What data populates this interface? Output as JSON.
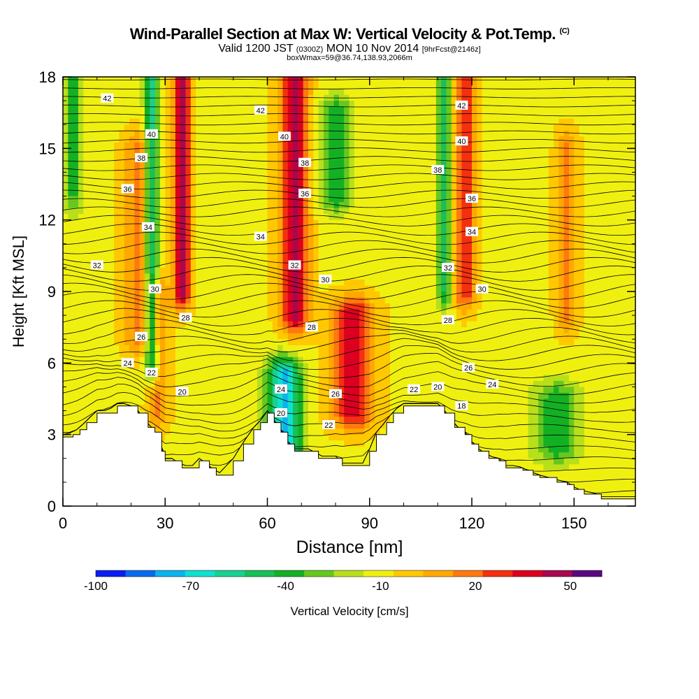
{
  "chart_data": {
    "type": "heatmap",
    "title": "Wind-Parallel Section at Max W: Vertical Velocity & Pot.Temp.",
    "title_mark": "(C)",
    "subtitle_main": "Valid 1200 JST",
    "subtitle_utc": "(0300Z)",
    "subtitle_date": "MON 10 Nov 2014",
    "subtitle_fcst": "[9hrFcst@2146z]",
    "subtitle2": "boxWmax=59@36.74,138.93,2066m",
    "xlabel": "Distance [nm]",
    "ylabel": "Height [Kft MSL]",
    "xlim": [
      0,
      168
    ],
    "ylim": [
      0,
      18
    ],
    "xticks": [
      "0",
      "30",
      "60",
      "90",
      "120",
      "150"
    ],
    "xtick_values": [
      0,
      30,
      60,
      90,
      120,
      150
    ],
    "yticks": [
      "0",
      "3",
      "6",
      "9",
      "12",
      "15",
      "18"
    ],
    "ytick_values": [
      0,
      3,
      6,
      9,
      12,
      15,
      18
    ],
    "colorbar": {
      "label": "Vertical Velocity [cm/s]",
      "tick_labels": [
        "-100",
        "-70",
        "-40",
        "-10",
        "20",
        "50"
      ],
      "tick_values": [
        -100,
        -70,
        -40,
        -10,
        20,
        50
      ],
      "bins": [
        -100,
        -90,
        -80,
        -70,
        -60,
        -50,
        -40,
        -30,
        -20,
        -10,
        0,
        10,
        20,
        30,
        40,
        50,
        60
      ],
      "colors": [
        "#0a1ef0",
        "#0a6aee",
        "#0ab4ee",
        "#10e0d0",
        "#18d090",
        "#18c058",
        "#14b024",
        "#66c81e",
        "#b8e01a",
        "#f0f010",
        "#ffc800",
        "#ffa800",
        "#ff7810",
        "#f43010",
        "#dc0020",
        "#a80850",
        "#5a0a80"
      ]
    },
    "terrain": {
      "x": [
        0,
        3,
        5,
        7,
        10,
        13,
        16,
        19,
        22,
        25,
        27,
        29,
        30,
        32,
        35,
        38,
        40,
        43,
        45,
        46,
        50,
        53,
        56,
        58,
        60,
        62,
        64,
        66,
        68,
        70,
        73,
        75,
        78,
        80,
        82,
        85,
        88,
        90,
        92,
        95,
        97,
        100,
        102,
        105,
        108,
        110,
        112,
        115,
        118,
        120,
        122,
        125,
        128,
        130,
        133,
        135,
        138,
        140,
        145,
        148,
        150,
        153,
        155,
        158,
        162,
        168
      ],
      "z": [
        2.9,
        3.0,
        3.2,
        3.5,
        3.9,
        3.9,
        4.2,
        4.2,
        3.9,
        3.3,
        3.1,
        2.3,
        1.9,
        1.9,
        1.6,
        1.6,
        1.9,
        1.6,
        1.3,
        1.3,
        1.9,
        2.6,
        3.2,
        3.5,
        3.9,
        3.5,
        3.1,
        2.6,
        2.3,
        2.3,
        2.3,
        2.0,
        2.0,
        2.0,
        1.7,
        1.7,
        1.7,
        2.3,
        3.0,
        3.5,
        3.9,
        4.2,
        4.2,
        4.2,
        4.2,
        4.2,
        3.9,
        3.3,
        3.0,
        2.6,
        2.3,
        2.0,
        1.9,
        1.6,
        1.6,
        1.5,
        1.3,
        1.2,
        1.0,
        0.9,
        0.7,
        0.5,
        0.5,
        0.3,
        0.3,
        0.3
      ]
    },
    "theta_contour_labels": [
      {
        "text": "42",
        "x": 13,
        "y": 17.1
      },
      {
        "text": "42",
        "x": 58,
        "y": 16.6
      },
      {
        "text": "42",
        "x": 117,
        "y": 16.8
      },
      {
        "text": "40",
        "x": 26,
        "y": 15.6
      },
      {
        "text": "40",
        "x": 65,
        "y": 15.5
      },
      {
        "text": "40",
        "x": 117,
        "y": 15.3
      },
      {
        "text": "38",
        "x": 23,
        "y": 14.6
      },
      {
        "text": "38",
        "x": 71,
        "y": 14.4
      },
      {
        "text": "38",
        "x": 110,
        "y": 14.1
      },
      {
        "text": "36",
        "x": 19,
        "y": 13.3
      },
      {
        "text": "36",
        "x": 71,
        "y": 13.1
      },
      {
        "text": "36",
        "x": 120,
        "y": 12.9
      },
      {
        "text": "34",
        "x": 25,
        "y": 11.7
      },
      {
        "text": "34",
        "x": 58,
        "y": 11.3
      },
      {
        "text": "34",
        "x": 120,
        "y": 11.5
      },
      {
        "text": "32",
        "x": 10,
        "y": 10.1
      },
      {
        "text": "32",
        "x": 68,
        "y": 10.1
      },
      {
        "text": "32",
        "x": 113,
        "y": 10.0
      },
      {
        "text": "30",
        "x": 27,
        "y": 9.1
      },
      {
        "text": "30",
        "x": 77,
        "y": 9.5
      },
      {
        "text": "30",
        "x": 123,
        "y": 9.1
      },
      {
        "text": "28",
        "x": 36,
        "y": 7.9
      },
      {
        "text": "28",
        "x": 73,
        "y": 7.5
      },
      {
        "text": "28",
        "x": 113,
        "y": 7.8
      },
      {
        "text": "26",
        "x": 23,
        "y": 7.1
      },
      {
        "text": "26",
        "x": 80,
        "y": 4.7
      },
      {
        "text": "26",
        "x": 119,
        "y": 5.8
      },
      {
        "text": "24",
        "x": 19,
        "y": 6.0
      },
      {
        "text": "24",
        "x": 64,
        "y": 4.9
      },
      {
        "text": "24",
        "x": 126,
        "y": 5.1
      },
      {
        "text": "22",
        "x": 26,
        "y": 5.6
      },
      {
        "text": "22",
        "x": 78,
        "y": 3.4
      },
      {
        "text": "22",
        "x": 103,
        "y": 4.9
      },
      {
        "text": "20",
        "x": 35,
        "y": 4.8
      },
      {
        "text": "20",
        "x": 64,
        "y": 3.9
      },
      {
        "text": "20",
        "x": 110,
        "y": 5.0
      },
      {
        "text": "18",
        "x": 117,
        "y": 4.2
      }
    ],
    "velocity_features": [
      {
        "kind": "updraft",
        "x": 35,
        "halfwidth": 2.5,
        "ybot": 9,
        "ytop": 18,
        "w": 55
      },
      {
        "kind": "updraft",
        "x": 28,
        "halfwidth": 3,
        "ybot": 4,
        "ytop": 9,
        "w": 25
      },
      {
        "kind": "downdraft",
        "x": 26,
        "halfwidth": 2,
        "ybot": 6,
        "ytop": 18,
        "w": -55
      },
      {
        "kind": "updraft",
        "x": 22,
        "halfwidth": 4,
        "ybot": 7,
        "ytop": 15,
        "w": 25
      },
      {
        "kind": "downdraft",
        "x": 3,
        "halfwidth": 3,
        "ybot": 13,
        "ytop": 18,
        "w": -30
      },
      {
        "kind": "updraft",
        "x": 68,
        "halfwidth": 4,
        "ybot": 8,
        "ytop": 18,
        "w": 55
      },
      {
        "kind": "updraft",
        "x": 85,
        "halfwidth": 6,
        "ybot": 4,
        "ytop": 8,
        "w": 50
      },
      {
        "kind": "downdraft",
        "x": 65,
        "halfwidth": 5,
        "ybot": 2,
        "ytop": 5.5,
        "w": -70
      },
      {
        "kind": "downdraft",
        "x": 80,
        "halfwidth": 5,
        "ybot": 13,
        "ytop": 16.5,
        "w": -35
      },
      {
        "kind": "updraft",
        "x": 118,
        "halfwidth": 3,
        "ybot": 9,
        "ytop": 18,
        "w": 40
      },
      {
        "kind": "downdraft",
        "x": 112,
        "halfwidth": 2,
        "ybot": 9,
        "ytop": 18,
        "w": -40
      },
      {
        "kind": "downdraft",
        "x": 145,
        "halfwidth": 7,
        "ybot": 2.5,
        "ytop": 4.5,
        "w": -35
      },
      {
        "kind": "updraft",
        "x": 148,
        "halfwidth": 3,
        "ybot": 8,
        "ytop": 15,
        "w": 25
      }
    ],
    "grid": false
  }
}
